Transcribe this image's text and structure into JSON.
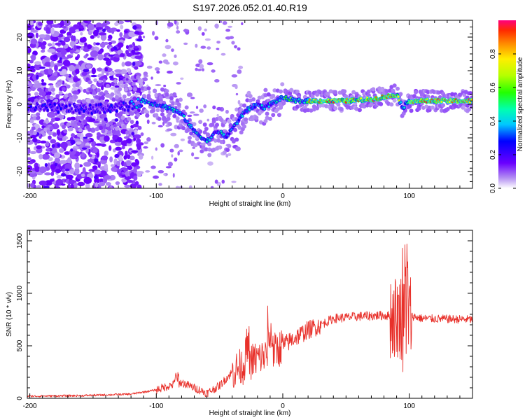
{
  "title": "S197.2026.052.01.40.R19",
  "chart_data": [
    {
      "type": "heatmap",
      "name": "spectrogram",
      "xlabel": "Height of straight line (km)",
      "ylabel": "Frequency (Hz)",
      "xlim": [
        -202,
        150
      ],
      "ylim": [
        -25,
        25
      ],
      "xticks": [
        -200,
        -100,
        0,
        100
      ],
      "yticks": [
        -20,
        -10,
        0,
        10,
        20
      ],
      "ridge": {
        "x": [
          -200,
          -150,
          -120,
          -110,
          -100,
          -90,
          -80,
          -70,
          -60,
          -55,
          -50,
          -45,
          -40,
          -35,
          -30,
          -25,
          -20,
          -15,
          -10,
          -5,
          0,
          10,
          30,
          50,
          70,
          85,
          90,
          95,
          100,
          150
        ],
        "y": [
          -1,
          -1.5,
          -0.5,
          1,
          0,
          -1,
          -3,
          -8,
          -11,
          -9,
          -8,
          -10,
          -7,
          -5,
          -2,
          -1,
          0,
          -1,
          0,
          1,
          2,
          1,
          1,
          1,
          1.5,
          2.5,
          3,
          -1,
          1,
          1
        ]
      },
      "colorbar": {
        "label": "Normalized spectral amplitude",
        "ticks": [
          0.0,
          0.2,
          0.4,
          0.6,
          0.8
        ],
        "tick_labels": [
          "0.0",
          "0.2",
          "0.4",
          "0.6",
          "0.8"
        ],
        "range": [
          0,
          1
        ]
      }
    },
    {
      "type": "line",
      "name": "snr",
      "xlabel": "Height of straight line (km)",
      "ylabel": "SNR (10 * v/v)",
      "xlim": [
        -202,
        150
      ],
      "ylim": [
        0,
        1600
      ],
      "xticks": [
        -200,
        -100,
        0,
        100
      ],
      "yticks": [
        0,
        500,
        1000,
        1500
      ],
      "color": "#e8302a",
      "trend": {
        "x": [
          -200,
          -160,
          -120,
          -100,
          -90,
          -80,
          -70,
          -60,
          -50,
          -40,
          -30,
          -20,
          -10,
          0,
          10,
          20,
          30,
          40,
          60,
          80,
          90,
          95,
          100,
          110,
          150
        ],
        "y": [
          20,
          25,
          40,
          80,
          120,
          150,
          100,
          50,
          120,
          250,
          320,
          380,
          420,
          500,
          580,
          650,
          700,
          760,
          780,
          790,
          780,
          780,
          790,
          760,
          750
        ]
      }
    }
  ]
}
